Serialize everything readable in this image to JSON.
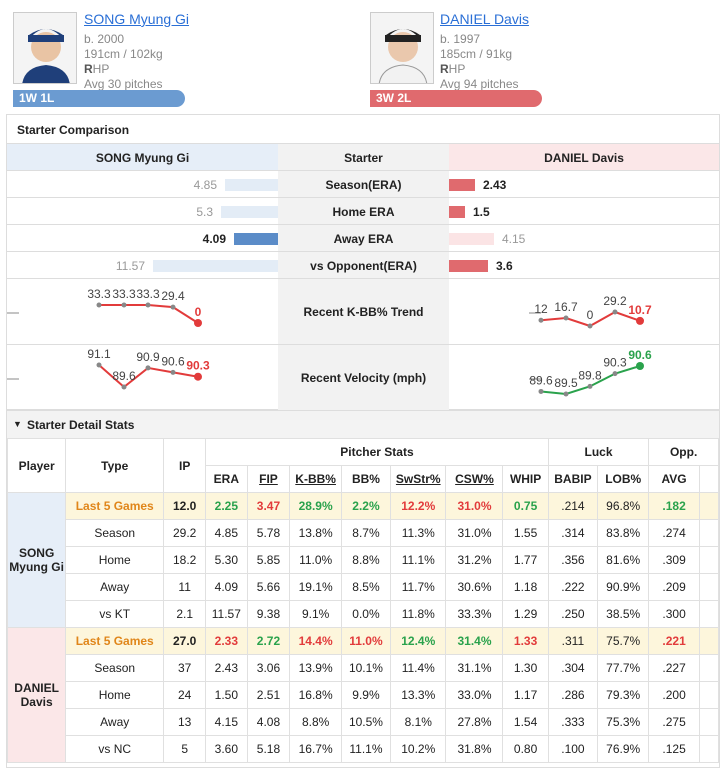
{
  "colors": {
    "song": "#6b9bd1",
    "daniel": "#e06a6e",
    "up": "#2aa24c",
    "down": "#e23b3b",
    "highlight": "#fdf6dc"
  },
  "song": {
    "name": "SONG Myung Gi",
    "born": "b. 2000",
    "body": "191cm / 102kg",
    "hand_bold": "R",
    "hand_rest": "HP",
    "avg": "Avg 30 pitches",
    "record": "1W 1L"
  },
  "daniel": {
    "name": "DANIEL Davis",
    "born": "b. 1997",
    "body": "185cm / 91kg",
    "hand_bold": "R",
    "hand_rest": "HP",
    "avg": "Avg 94 pitches",
    "record": "3W 2L"
  },
  "comparison": {
    "title": "Starter Comparison",
    "header": {
      "left": "SONG Myung Gi",
      "center": "Starter",
      "right": "DANIEL Davis"
    },
    "rows": [
      {
        "label": "Season(ERA)",
        "left": "4.85",
        "right": "2.43",
        "left_val": 4.85,
        "right_val": 2.43,
        "winner": "right"
      },
      {
        "label": "Home ERA",
        "left": "5.3",
        "right": "1.5",
        "left_val": 5.3,
        "right_val": 1.5,
        "winner": "right"
      },
      {
        "label": "Away ERA",
        "left": "4.09",
        "right": "4.15",
        "left_val": 4.09,
        "right_val": 4.15,
        "winner": "left"
      },
      {
        "label": "vs Opponent(ERA)",
        "left": "11.57",
        "right": "3.6",
        "left_val": 11.57,
        "right_val": 3.6,
        "winner": "right"
      }
    ],
    "trend_label": "Recent K-BB% Trend",
    "velocity_label": "Recent Velocity (mph)",
    "trend_left": [
      "33.3",
      "33.3",
      "33.3",
      "29.4",
      "0"
    ],
    "trend_right": [
      "12",
      "16.7",
      "0",
      "29.2",
      "10.7"
    ],
    "velo_left": [
      "91.1",
      "89.6",
      "90.9",
      "90.6",
      "90.3"
    ],
    "velo_right": [
      "89.6",
      "89.5",
      "89.8",
      "90.3",
      "90.6"
    ]
  },
  "detail": {
    "title": "Starter Detail Stats",
    "groups": {
      "pitcher": "Pitcher Stats",
      "luck": "Luck",
      "opp": "Opp."
    },
    "cols": {
      "player": "Player",
      "type": "Type",
      "ip": "IP",
      "era": "ERA",
      "fip": "FIP",
      "kbb": "K-BB%",
      "bb": "BB%",
      "swstr": "SwStr%",
      "csw": "CSW%",
      "whip": "WHIP",
      "babip": "BABIP",
      "lob": "LOB%",
      "avg": "AVG"
    },
    "song_label": "SONG Myung Gi",
    "daniel_label": "DANIEL Davis",
    "song_rows": [
      [
        "Last 5 Games",
        "12.0",
        "2.25",
        "3.47",
        "28.9%",
        "2.2%",
        "12.2%",
        "31.0%",
        "0.75",
        ".214",
        "96.8%",
        ".182"
      ],
      [
        "Season",
        "29.2",
        "4.85",
        "5.78",
        "13.8%",
        "8.7%",
        "11.3%",
        "31.0%",
        "1.55",
        ".314",
        "83.8%",
        ".274"
      ],
      [
        "Home",
        "18.2",
        "5.30",
        "5.85",
        "11.0%",
        "8.8%",
        "11.1%",
        "31.2%",
        "1.77",
        ".356",
        "81.6%",
        ".309"
      ],
      [
        "Away",
        "11",
        "4.09",
        "5.66",
        "19.1%",
        "8.5%",
        "11.7%",
        "30.6%",
        "1.18",
        ".222",
        "90.9%",
        ".209"
      ],
      [
        "vs KT",
        "2.1",
        "11.57",
        "9.38",
        "9.1%",
        "0.0%",
        "11.8%",
        "33.3%",
        "1.29",
        ".250",
        "38.5%",
        ".300"
      ]
    ],
    "daniel_rows": [
      [
        "Last 5 Games",
        "27.0",
        "2.33",
        "2.72",
        "14.4%",
        "11.0%",
        "12.4%",
        "31.4%",
        "1.33",
        ".311",
        "75.7%",
        ".221"
      ],
      [
        "Season",
        "37",
        "2.43",
        "3.06",
        "13.9%",
        "10.1%",
        "11.4%",
        "31.1%",
        "1.30",
        ".304",
        "77.7%",
        ".227"
      ],
      [
        "Home",
        "24",
        "1.50",
        "2.51",
        "16.8%",
        "9.9%",
        "13.3%",
        "33.0%",
        "1.17",
        ".286",
        "79.3%",
        ".200"
      ],
      [
        "Away",
        "13",
        "4.15",
        "4.08",
        "8.8%",
        "10.5%",
        "8.1%",
        "27.8%",
        "1.54",
        ".333",
        "75.3%",
        ".275"
      ],
      [
        "vs NC",
        "5",
        "3.60",
        "5.18",
        "16.7%",
        "11.1%",
        "10.2%",
        "31.8%",
        "0.80",
        ".100",
        "76.9%",
        ".125"
      ]
    ]
  }
}
